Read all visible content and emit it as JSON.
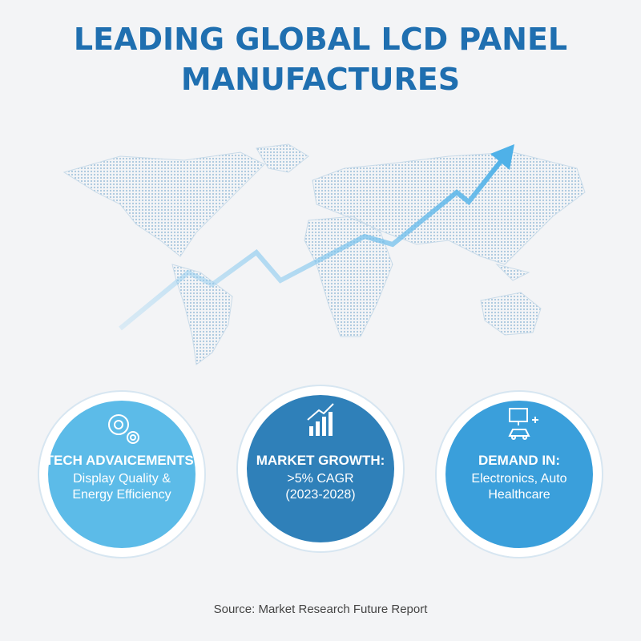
{
  "title": {
    "lines": [
      "LEADING GLOBAL LCD PANEL",
      "MANUFACTURES"
    ]
  },
  "circles": [
    {
      "heading": "TECH ADVAICEMENTS:",
      "lines": [
        "Display Quality &",
        "Energy Efficiency"
      ]
    },
    {
      "heading": "MARKET GROWTH:",
      "lines": [
        ">5% CAGR",
        "(2023-2028)"
      ]
    },
    {
      "heading": "DEMAND IN:",
      "lines": [
        "Electronics, Auto",
        "Healthcare"
      ]
    }
  ],
  "source": "Source: Market Research Future Report"
}
